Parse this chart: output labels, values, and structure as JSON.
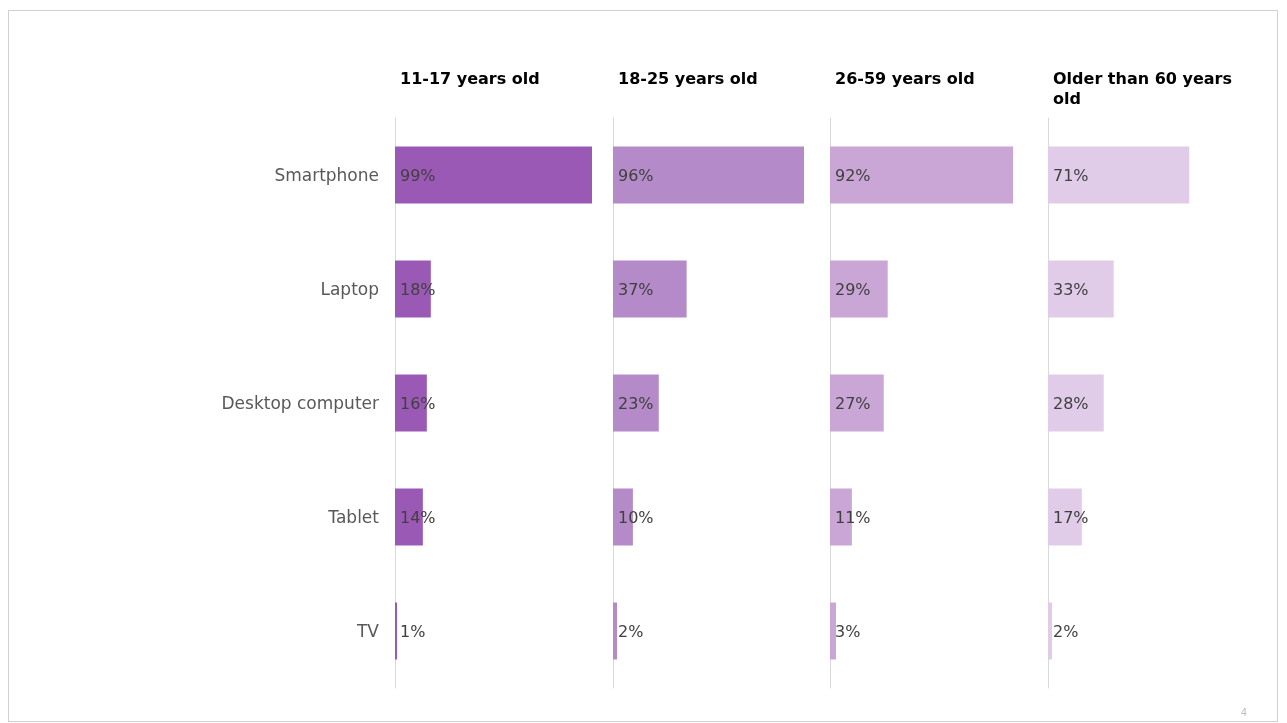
{
  "chart_data": [
    {
      "type": "bar",
      "orientation": "horizontal",
      "title": "11-17 years old",
      "categories": [
        "Smartphone",
        "Laptop",
        "Desktop computer",
        "Tablet",
        "TV"
      ],
      "values": [
        99,
        18,
        16,
        14,
        1
      ],
      "value_labels": [
        "99%",
        "18%",
        "16%",
        "14%",
        "1%"
      ],
      "color": "#9b59b6",
      "tick_labels": "y"
    },
    {
      "type": "bar",
      "orientation": "horizontal",
      "title": "18-25 years old",
      "categories": [
        null,
        null,
        null,
        null,
        null
      ],
      "values": [
        96,
        37,
        23,
        10,
        2
      ],
      "value_labels": [
        "96%",
        "37%",
        "23%",
        "10%",
        "2%"
      ],
      "color": "#b48ac8",
      "tick_labels": false
    },
    {
      "type": "bar",
      "orientation": "horizontal",
      "title": "26-59 years old",
      "categories": [
        null,
        null,
        null,
        null,
        null
      ],
      "values": [
        92,
        29,
        27,
        11,
        3
      ],
      "value_labels": [
        "92%",
        "29%",
        "27%",
        "11%",
        "3%"
      ],
      "color": "#c9a6d5",
      "tick_labels": false
    },
    {
      "type": "bar",
      "orientation": "horizontal",
      "title": "Older than 60 years old",
      "categories": [
        null,
        null,
        null,
        null,
        null
      ],
      "values": [
        71,
        33,
        28,
        17,
        2
      ],
      "value_labels": [
        "71%",
        "33%",
        "28%",
        "17%",
        "2%"
      ],
      "color": "#e0cbe8",
      "tick_labels": false,
      "annotations": [
        "4"
      ]
    }
  ]
}
